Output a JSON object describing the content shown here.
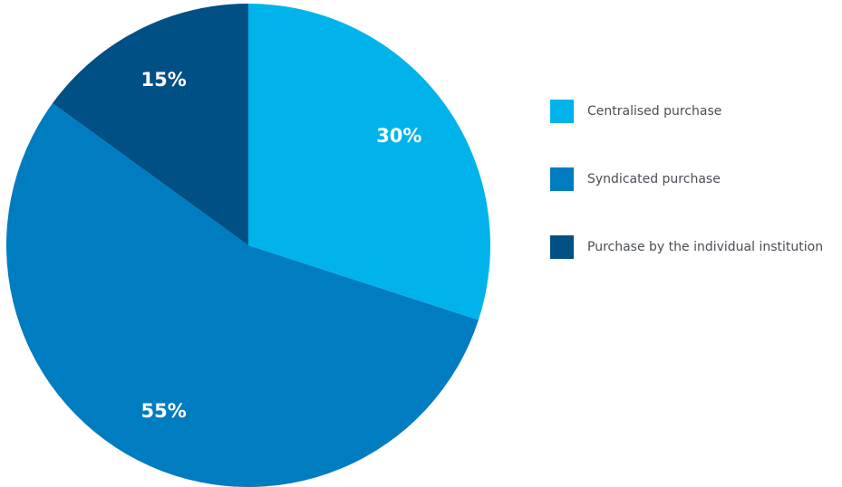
{
  "chart_data": {
    "type": "pie",
    "title": "",
    "legend_position": "right",
    "slices": [
      {
        "name": "Centralised purchase",
        "value": 30,
        "label": "30%",
        "color": "#00b4eb"
      },
      {
        "name": "Syndicated purchase",
        "value": 55,
        "label": "55%",
        "color": "#007cc1"
      },
      {
        "name": "Purchase by the individual institution",
        "value": 15,
        "label": "15%",
        "color": "#004f85"
      }
    ]
  }
}
